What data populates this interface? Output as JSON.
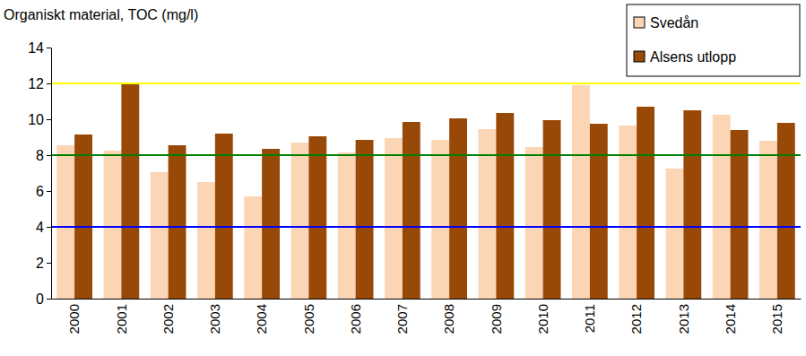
{
  "chart_data": {
    "type": "bar",
    "title": "Organiskt material, TOC (mg/l)",
    "categories": [
      "2000",
      "2001",
      "2002",
      "2003",
      "2004",
      "2005",
      "2006",
      "2007",
      "2008",
      "2009",
      "2010",
      "2011",
      "2012",
      "2013",
      "2014",
      "2015"
    ],
    "series": [
      {
        "name": "Svedån",
        "color": "#fcd5b5",
        "values": [
          8.55,
          8.25,
          7.05,
          6.5,
          5.7,
          8.7,
          8.15,
          8.95,
          8.85,
          9.45,
          8.45,
          11.9,
          9.65,
          7.25,
          10.25,
          8.8
        ]
      },
      {
        "name": "Alsens utlopp",
        "color": "#984807",
        "values": [
          9.15,
          11.95,
          8.55,
          9.2,
          8.35,
          9.05,
          8.85,
          9.85,
          10.05,
          10.35,
          9.95,
          9.75,
          10.7,
          10.5,
          9.4,
          9.8
        ]
      }
    ],
    "reference_lines": [
      {
        "value": 12,
        "color": "#ffff00"
      },
      {
        "value": 8,
        "color": "#008000"
      },
      {
        "value": 4,
        "color": "#0000ff"
      }
    ],
    "ylim": [
      0,
      14
    ],
    "yticks": [
      0,
      2,
      4,
      6,
      8,
      10,
      12,
      14
    ],
    "legend": "top-right"
  }
}
